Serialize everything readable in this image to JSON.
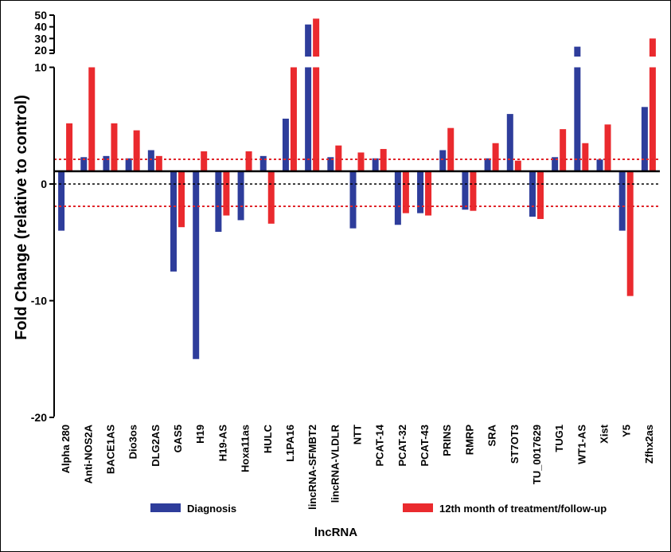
{
  "chart_data": {
    "type": "bar",
    "title": "",
    "ylabel": "Fold Change (relative to control)",
    "xlabel": "lncRNA",
    "ylim": [
      -20,
      50
    ],
    "y_axis_break": {
      "lower_top": 10,
      "upper_ticks": [
        20,
        30,
        40,
        50
      ]
    },
    "yticks": [
      -20,
      -10,
      0,
      10,
      20,
      30,
      40,
      50
    ],
    "ytick_labels": [
      "-20",
      "-10",
      "0",
      "10",
      "20",
      "30",
      "40",
      "50"
    ],
    "reference_lines": {
      "zero": 0,
      "upper_threshold": 2,
      "lower_threshold": -2
    },
    "categories": [
      "Alpha 280",
      "Anti-NOS2A",
      "BACE1AS",
      "Dio3os",
      "DLG2AS",
      "GAS5",
      "H19",
      "H19-AS",
      "Hoxa11as",
      "HULC",
      "L1PA16",
      "lincRNA-SFMBT2",
      "lincRNA-VLDLR",
      "NTT",
      "PCAT-14",
      "PCAT-32",
      "PCAT-43",
      "PRINS",
      "RMRP",
      "SRA",
      "ST7OT3",
      "TU_0017629",
      "TUG1",
      "WT1-AS",
      "Xist",
      "Y5",
      "Zfhx2as"
    ],
    "series": [
      {
        "name": "Diagnosis",
        "color": "#2e3d9b",
        "values": [
          -4.0,
          2.3,
          2.4,
          2.2,
          2.9,
          -7.5,
          -15.0,
          -4.1,
          -3.1,
          2.4,
          5.6,
          42,
          2.3,
          -3.8,
          2.2,
          -3.5,
          -2.5,
          2.9,
          -2.2,
          2.2,
          6.0,
          -2.8,
          2.3,
          23,
          2.1,
          -4.0,
          6.6
        ]
      },
      {
        "name": "12th month of treatment/follow-up",
        "color": "#ea2a2e",
        "values": [
          5.2,
          10,
          5.2,
          4.6,
          2.4,
          -3.7,
          2.8,
          -2.7,
          2.8,
          -3.4,
          10,
          47,
          3.3,
          2.7,
          3.0,
          -2.5,
          -2.7,
          4.8,
          -2.3,
          3.5,
          2.0,
          -3.0,
          4.7,
          3.5,
          5.1,
          -9.6,
          30
        ]
      }
    ],
    "legend": {
      "placement": "bottom",
      "entries": [
        "Diagnosis",
        "12th month of treatment/follow-up"
      ]
    },
    "grid": false
  }
}
